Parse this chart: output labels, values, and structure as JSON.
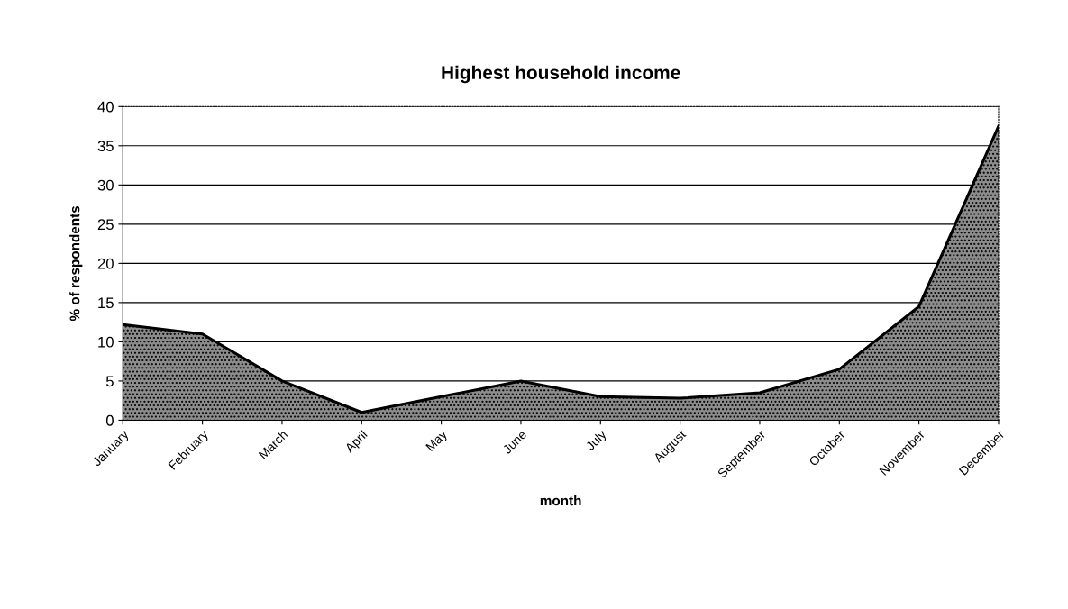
{
  "chart_data": {
    "type": "area",
    "title": "Highest household income",
    "xlabel": "month",
    "ylabel": "% of respondents",
    "categories": [
      "January",
      "February",
      "March",
      "April",
      "May",
      "June",
      "July",
      "August",
      "September",
      "October",
      "November",
      "December"
    ],
    "series": [
      {
        "color": "#8c8c8c",
        "values": [
          12.2,
          11,
          5,
          1,
          3,
          5,
          3,
          2.8,
          3.5,
          6.5,
          14.5,
          37.5
        ]
      }
    ],
    "ylim": [
      0,
      40
    ],
    "yticks": [
      0,
      5,
      10,
      15,
      20,
      25,
      30,
      35,
      40
    ],
    "grid": "y",
    "legend": false
  }
}
